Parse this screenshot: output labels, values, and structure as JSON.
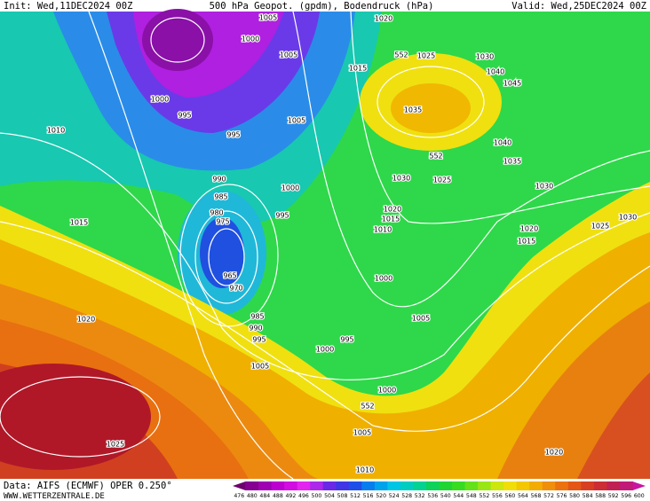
{
  "header": {
    "init": "Init: Wed,11DEC2024 00Z",
    "title": "500 hPa Geopot. (gpdm), Bodendruck (hPa)",
    "valid": "Valid: Wed,25DEC2024 00Z"
  },
  "isobar_labels": [
    "1005",
    "1000",
    "1005",
    "1000",
    "995",
    "1005",
    "995",
    "1010",
    "990",
    "985",
    "980",
    "975",
    "965",
    "970",
    "1000",
    "995",
    "1015",
    "1020",
    "985",
    "990",
    "995",
    "1005",
    "1000",
    "995",
    "1000",
    "1005",
    "1000",
    "1005",
    "1010",
    "1025",
    "1020",
    "1020",
    "1025",
    "1030",
    "1040",
    "1045",
    "1015",
    "1035",
    "1040",
    "1035",
    "1030",
    "1025",
    "1030",
    "1020",
    "1015",
    "1010",
    "1020",
    "1015",
    "1025",
    "1030",
    "552",
    "552",
    "552"
  ],
  "colorbar": {
    "labels": [
      476,
      480,
      484,
      488,
      492,
      496,
      500,
      504,
      508,
      512,
      516,
      520,
      524,
      528,
      532,
      536,
      540,
      544,
      548,
      552,
      556,
      560,
      564,
      568,
      572,
      576,
      580,
      584,
      588,
      592,
      596,
      600
    ]
  },
  "footer": {
    "data": "Data: AIFS (ECMWF) OPER 0.250°",
    "source": "WWW.WETTERZENTRALE.DE"
  }
}
